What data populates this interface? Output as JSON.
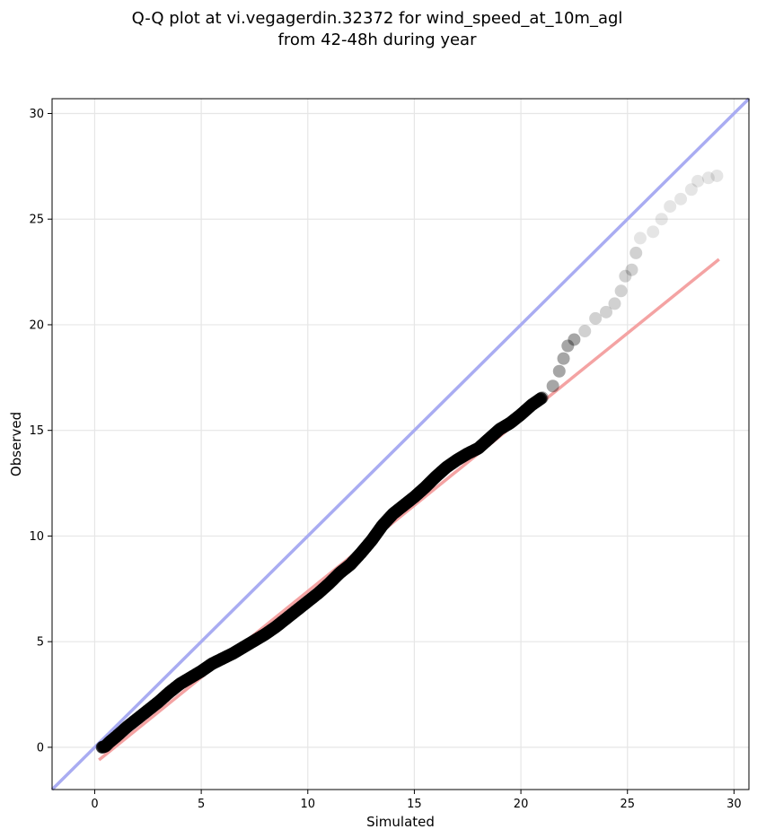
{
  "chart_data": {
    "type": "scatter",
    "title_line1": "Q-Q plot at vi.vegagerdin.32372 for wind_speed_at_10m_agl",
    "title_line2": "from 42-48h during year",
    "xlabel": "Simulated",
    "ylabel": "Observed",
    "xlim": [
      -2,
      30.7
    ],
    "ylim": [
      -2,
      30.7
    ],
    "xticks": [
      0,
      5,
      10,
      15,
      20,
      25,
      30
    ],
    "yticks": [
      0,
      5,
      10,
      15,
      20,
      25,
      30
    ],
    "grid": true,
    "identity_line": {
      "from": [
        -2,
        -2
      ],
      "to": [
        30.7,
        30.7
      ],
      "color": "#a9acf2"
    },
    "fit_line": {
      "from": [
        0.2,
        -0.6
      ],
      "to": [
        29.3,
        23.1
      ],
      "color": "#f4a3a3"
    },
    "point_color": "#000000",
    "quantiles": [
      [
        0.35,
        0.0
      ],
      [
        0.5,
        0.05
      ],
      [
        0.7,
        0.25
      ],
      [
        1.0,
        0.5
      ],
      [
        1.5,
        0.95
      ],
      [
        2.0,
        1.35
      ],
      [
        2.5,
        1.75
      ],
      [
        3.0,
        2.15
      ],
      [
        3.5,
        2.6
      ],
      [
        4.0,
        3.0
      ],
      [
        4.5,
        3.3
      ],
      [
        5.0,
        3.6
      ],
      [
        5.5,
        3.95
      ],
      [
        6.0,
        4.2
      ],
      [
        6.5,
        4.45
      ],
      [
        7.0,
        4.75
      ],
      [
        7.5,
        5.05
      ],
      [
        8.0,
        5.35
      ],
      [
        8.5,
        5.7
      ],
      [
        9.0,
        6.1
      ],
      [
        9.5,
        6.5
      ],
      [
        10.0,
        6.9
      ],
      [
        10.5,
        7.3
      ],
      [
        11.0,
        7.75
      ],
      [
        11.5,
        8.25
      ],
      [
        12.0,
        8.65
      ],
      [
        12.5,
        9.2
      ],
      [
        13.0,
        9.8
      ],
      [
        13.5,
        10.5
      ],
      [
        14.0,
        11.05
      ],
      [
        14.5,
        11.45
      ],
      [
        15.0,
        11.85
      ],
      [
        15.5,
        12.3
      ],
      [
        16.0,
        12.8
      ],
      [
        16.5,
        13.25
      ],
      [
        17.0,
        13.6
      ],
      [
        17.5,
        13.9
      ],
      [
        18.0,
        14.15
      ],
      [
        18.5,
        14.6
      ],
      [
        19.0,
        15.05
      ],
      [
        19.5,
        15.35
      ],
      [
        20.0,
        15.75
      ],
      [
        20.5,
        16.2
      ],
      [
        21.0,
        16.55
      ],
      [
        21.5,
        17.1
      ],
      [
        21.8,
        17.8
      ],
      [
        22.0,
        18.4
      ],
      [
        22.2,
        19.0
      ],
      [
        22.5,
        19.3
      ],
      [
        23.0,
        19.7
      ],
      [
        23.5,
        20.3
      ],
      [
        24.0,
        20.6
      ],
      [
        24.4,
        21.0
      ],
      [
        24.7,
        21.6
      ],
      [
        24.9,
        22.3
      ],
      [
        25.2,
        22.6
      ],
      [
        25.4,
        23.4
      ],
      [
        25.6,
        24.1
      ],
      [
        26.2,
        24.4
      ],
      [
        26.6,
        25.0
      ],
      [
        27.0,
        25.6
      ],
      [
        27.5,
        25.95
      ],
      [
        28.0,
        26.4
      ],
      [
        28.3,
        26.8
      ],
      [
        28.8,
        26.95
      ],
      [
        29.2,
        27.05
      ]
    ]
  }
}
